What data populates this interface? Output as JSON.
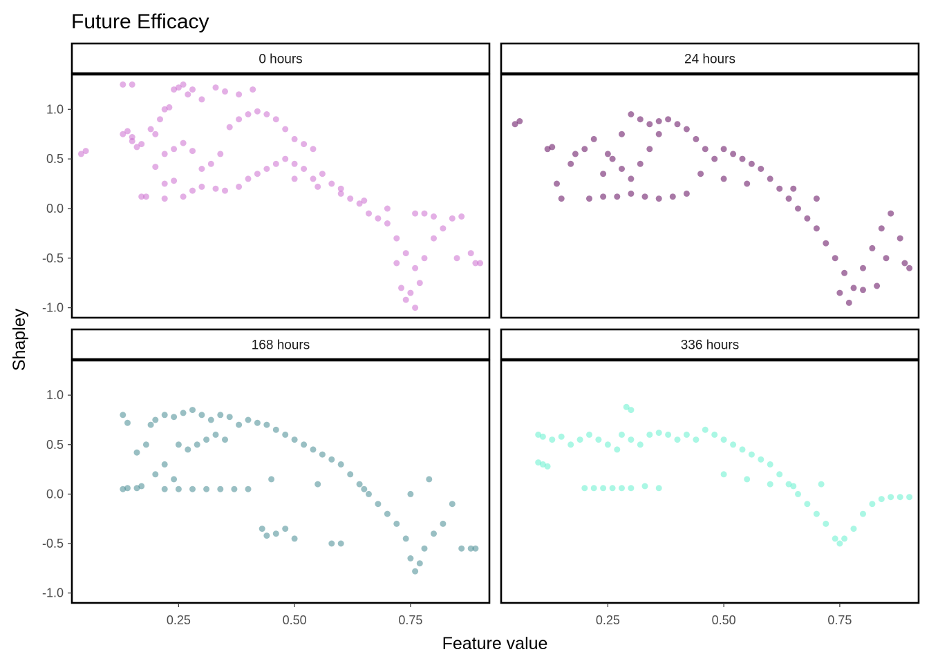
{
  "chart_data": {
    "type": "scatter",
    "title": "Future Efficacy",
    "xlabel": "Feature value",
    "ylabel": "Shapley",
    "xlim": [
      0.02,
      0.92
    ],
    "ylim": [
      -1.1,
      1.35
    ],
    "x_ticks": [
      {
        "value": 0.25,
        "label": "0.25"
      },
      {
        "value": 0.5,
        "label": "0.50"
      },
      {
        "value": 0.75,
        "label": "0.75"
      }
    ],
    "y_ticks": [
      {
        "value": 1.0,
        "label": "1.0"
      },
      {
        "value": 0.5,
        "label": "0.5"
      },
      {
        "value": 0.0,
        "label": "0.0"
      },
      {
        "value": -0.5,
        "label": "-0.5"
      },
      {
        "value": -1.0,
        "label": "-1.0"
      }
    ],
    "layout": "facet grid 2x2 (shared axes)",
    "panels": [
      {
        "label": "0 hours",
        "color": "#CC6ED0",
        "opacity": 0.55,
        "points": [
          [
            0.04,
            0.55
          ],
          [
            0.05,
            0.58
          ],
          [
            0.13,
            0.75
          ],
          [
            0.14,
            0.78
          ],
          [
            0.15,
            0.72
          ],
          [
            0.15,
            0.68
          ],
          [
            0.16,
            0.62
          ],
          [
            0.17,
            0.12
          ],
          [
            0.18,
            0.12
          ],
          [
            0.13,
            1.25
          ],
          [
            0.15,
            1.25
          ],
          [
            0.17,
            0.65
          ],
          [
            0.19,
            0.8
          ],
          [
            0.2,
            0.75
          ],
          [
            0.21,
            0.9
          ],
          [
            0.22,
            1.0
          ],
          [
            0.23,
            1.02
          ],
          [
            0.24,
            1.2
          ],
          [
            0.25,
            1.22
          ],
          [
            0.26,
            1.25
          ],
          [
            0.27,
            1.15
          ],
          [
            0.28,
            1.2
          ],
          [
            0.3,
            1.1
          ],
          [
            0.33,
            1.22
          ],
          [
            0.35,
            1.18
          ],
          [
            0.38,
            1.15
          ],
          [
            0.41,
            1.2
          ],
          [
            0.22,
            0.25
          ],
          [
            0.22,
            0.1
          ],
          [
            0.24,
            0.28
          ],
          [
            0.26,
            0.12
          ],
          [
            0.28,
            0.18
          ],
          [
            0.3,
            0.22
          ],
          [
            0.33,
            0.2
          ],
          [
            0.35,
            0.18
          ],
          [
            0.38,
            0.22
          ],
          [
            0.2,
            0.42
          ],
          [
            0.22,
            0.55
          ],
          [
            0.24,
            0.6
          ],
          [
            0.26,
            0.66
          ],
          [
            0.28,
            0.58
          ],
          [
            0.3,
            0.4
          ],
          [
            0.32,
            0.45
          ],
          [
            0.34,
            0.55
          ],
          [
            0.36,
            0.82
          ],
          [
            0.38,
            0.9
          ],
          [
            0.4,
            0.95
          ],
          [
            0.42,
            0.98
          ],
          [
            0.44,
            0.95
          ],
          [
            0.46,
            0.9
          ],
          [
            0.48,
            0.8
          ],
          [
            0.5,
            0.7
          ],
          [
            0.52,
            0.65
          ],
          [
            0.54,
            0.6
          ],
          [
            0.4,
            0.3
          ],
          [
            0.42,
            0.35
          ],
          [
            0.44,
            0.4
          ],
          [
            0.46,
            0.45
          ],
          [
            0.48,
            0.5
          ],
          [
            0.5,
            0.45
          ],
          [
            0.52,
            0.4
          ],
          [
            0.54,
            0.3
          ],
          [
            0.56,
            0.35
          ],
          [
            0.58,
            0.25
          ],
          [
            0.6,
            0.2
          ],
          [
            0.62,
            0.1
          ],
          [
            0.64,
            0.05
          ],
          [
            0.66,
            -0.05
          ],
          [
            0.68,
            -0.1
          ],
          [
            0.7,
            -0.15
          ],
          [
            0.72,
            -0.3
          ],
          [
            0.74,
            -0.45
          ],
          [
            0.76,
            -0.6
          ],
          [
            0.75,
            -0.85
          ],
          [
            0.77,
            -0.75
          ],
          [
            0.73,
            -0.8
          ],
          [
            0.74,
            -0.92
          ],
          [
            0.76,
            -1.0
          ],
          [
            0.72,
            -0.55
          ],
          [
            0.78,
            -0.5
          ],
          [
            0.8,
            -0.3
          ],
          [
            0.82,
            -0.2
          ],
          [
            0.84,
            -0.1
          ],
          [
            0.86,
            -0.08
          ],
          [
            0.88,
            -0.45
          ],
          [
            0.89,
            -0.55
          ],
          [
            0.9,
            -0.55
          ],
          [
            0.85,
            -0.5
          ],
          [
            0.8,
            -0.08
          ],
          [
            0.78,
            -0.05
          ],
          [
            0.76,
            -0.05
          ],
          [
            0.7,
            0.0
          ],
          [
            0.65,
            0.08
          ],
          [
            0.6,
            0.15
          ],
          [
            0.55,
            0.22
          ],
          [
            0.5,
            0.3
          ]
        ]
      },
      {
        "label": "24 hours",
        "color": "#6E1E6A",
        "opacity": 0.6,
        "points": [
          [
            0.05,
            0.85
          ],
          [
            0.06,
            0.88
          ],
          [
            0.12,
            0.6
          ],
          [
            0.13,
            0.62
          ],
          [
            0.14,
            0.25
          ],
          [
            0.15,
            0.1
          ],
          [
            0.17,
            0.45
          ],
          [
            0.18,
            0.55
          ],
          [
            0.2,
            0.6
          ],
          [
            0.22,
            0.7
          ],
          [
            0.24,
            0.35
          ],
          [
            0.26,
            0.5
          ],
          [
            0.28,
            0.75
          ],
          [
            0.3,
            0.95
          ],
          [
            0.32,
            0.9
          ],
          [
            0.34,
            0.85
          ],
          [
            0.36,
            0.88
          ],
          [
            0.38,
            0.9
          ],
          [
            0.21,
            0.1
          ],
          [
            0.24,
            0.12
          ],
          [
            0.27,
            0.12
          ],
          [
            0.3,
            0.15
          ],
          [
            0.33,
            0.12
          ],
          [
            0.36,
            0.1
          ],
          [
            0.39,
            0.12
          ],
          [
            0.42,
            0.15
          ],
          [
            0.25,
            0.55
          ],
          [
            0.28,
            0.4
          ],
          [
            0.3,
            0.3
          ],
          [
            0.32,
            0.45
          ],
          [
            0.34,
            0.6
          ],
          [
            0.36,
            0.75
          ],
          [
            0.4,
            0.85
          ],
          [
            0.42,
            0.8
          ],
          [
            0.44,
            0.7
          ],
          [
            0.46,
            0.6
          ],
          [
            0.48,
            0.5
          ],
          [
            0.5,
            0.6
          ],
          [
            0.52,
            0.55
          ],
          [
            0.54,
            0.5
          ],
          [
            0.56,
            0.45
          ],
          [
            0.58,
            0.4
          ],
          [
            0.6,
            0.3
          ],
          [
            0.62,
            0.2
          ],
          [
            0.64,
            0.1
          ],
          [
            0.66,
            0.0
          ],
          [
            0.68,
            -0.1
          ],
          [
            0.7,
            -0.2
          ],
          [
            0.72,
            -0.35
          ],
          [
            0.74,
            -0.5
          ],
          [
            0.76,
            -0.65
          ],
          [
            0.75,
            -0.85
          ],
          [
            0.77,
            -0.95
          ],
          [
            0.78,
            -0.8
          ],
          [
            0.8,
            -0.6
          ],
          [
            0.82,
            -0.4
          ],
          [
            0.84,
            -0.2
          ],
          [
            0.86,
            -0.05
          ],
          [
            0.88,
            -0.3
          ],
          [
            0.89,
            -0.55
          ],
          [
            0.9,
            -0.6
          ],
          [
            0.85,
            -0.5
          ],
          [
            0.8,
            -0.82
          ],
          [
            0.83,
            -0.78
          ],
          [
            0.7,
            0.1
          ],
          [
            0.65,
            0.2
          ],
          [
            0.55,
            0.25
          ],
          [
            0.5,
            0.3
          ],
          [
            0.45,
            0.35
          ]
        ]
      },
      {
        "label": "168 hours",
        "color": "#468A92",
        "opacity": 0.55,
        "points": [
          [
            0.13,
            0.8
          ],
          [
            0.14,
            0.72
          ],
          [
            0.13,
            0.05
          ],
          [
            0.14,
            0.06
          ],
          [
            0.16,
            0.06
          ],
          [
            0.17,
            0.08
          ],
          [
            0.16,
            0.42
          ],
          [
            0.18,
            0.5
          ],
          [
            0.19,
            0.7
          ],
          [
            0.2,
            0.75
          ],
          [
            0.22,
            0.8
          ],
          [
            0.24,
            0.78
          ],
          [
            0.26,
            0.82
          ],
          [
            0.28,
            0.85
          ],
          [
            0.3,
            0.8
          ],
          [
            0.32,
            0.75
          ],
          [
            0.34,
            0.8
          ],
          [
            0.36,
            0.78
          ],
          [
            0.2,
            0.2
          ],
          [
            0.22,
            0.3
          ],
          [
            0.24,
            0.15
          ],
          [
            0.22,
            0.05
          ],
          [
            0.25,
            0.05
          ],
          [
            0.28,
            0.05
          ],
          [
            0.31,
            0.05
          ],
          [
            0.34,
            0.05
          ],
          [
            0.37,
            0.05
          ],
          [
            0.4,
            0.05
          ],
          [
            0.25,
            0.5
          ],
          [
            0.27,
            0.45
          ],
          [
            0.29,
            0.5
          ],
          [
            0.31,
            0.55
          ],
          [
            0.33,
            0.6
          ],
          [
            0.35,
            0.55
          ],
          [
            0.38,
            0.7
          ],
          [
            0.4,
            0.75
          ],
          [
            0.42,
            0.72
          ],
          [
            0.44,
            0.7
          ],
          [
            0.46,
            0.65
          ],
          [
            0.48,
            0.6
          ],
          [
            0.5,
            0.55
          ],
          [
            0.52,
            0.5
          ],
          [
            0.54,
            0.45
          ],
          [
            0.56,
            0.4
          ],
          [
            0.58,
            0.35
          ],
          [
            0.6,
            0.3
          ],
          [
            0.62,
            0.2
          ],
          [
            0.64,
            0.1
          ],
          [
            0.66,
            0.0
          ],
          [
            0.68,
            -0.1
          ],
          [
            0.7,
            -0.2
          ],
          [
            0.72,
            -0.3
          ],
          [
            0.74,
            -0.45
          ],
          [
            0.75,
            -0.65
          ],
          [
            0.76,
            -0.78
          ],
          [
            0.77,
            -0.7
          ],
          [
            0.78,
            -0.55
          ],
          [
            0.8,
            -0.4
          ],
          [
            0.82,
            -0.3
          ],
          [
            0.84,
            -0.1
          ],
          [
            0.86,
            -0.55
          ],
          [
            0.88,
            -0.55
          ],
          [
            0.89,
            -0.55
          ],
          [
            0.43,
            -0.35
          ],
          [
            0.44,
            -0.42
          ],
          [
            0.46,
            -0.4
          ],
          [
            0.48,
            -0.35
          ],
          [
            0.5,
            -0.45
          ],
          [
            0.58,
            -0.5
          ],
          [
            0.6,
            -0.5
          ],
          [
            0.79,
            0.15
          ],
          [
            0.75,
            0.0
          ],
          [
            0.65,
            0.05
          ],
          [
            0.55,
            0.1
          ],
          [
            0.45,
            0.15
          ]
        ]
      },
      {
        "label": "336 hours",
        "color": "#72F2D2",
        "opacity": 0.6,
        "points": [
          [
            0.1,
            0.6
          ],
          [
            0.11,
            0.58
          ],
          [
            0.1,
            0.32
          ],
          [
            0.11,
            0.3
          ],
          [
            0.12,
            0.28
          ],
          [
            0.13,
            0.55
          ],
          [
            0.15,
            0.58
          ],
          [
            0.17,
            0.5
          ],
          [
            0.19,
            0.55
          ],
          [
            0.21,
            0.6
          ],
          [
            0.23,
            0.55
          ],
          [
            0.25,
            0.5
          ],
          [
            0.27,
            0.45
          ],
          [
            0.29,
            0.88
          ],
          [
            0.3,
            0.85
          ],
          [
            0.28,
            0.6
          ],
          [
            0.3,
            0.55
          ],
          [
            0.32,
            0.5
          ],
          [
            0.2,
            0.06
          ],
          [
            0.22,
            0.06
          ],
          [
            0.24,
            0.06
          ],
          [
            0.26,
            0.06
          ],
          [
            0.28,
            0.06
          ],
          [
            0.3,
            0.06
          ],
          [
            0.33,
            0.08
          ],
          [
            0.36,
            0.06
          ],
          [
            0.34,
            0.6
          ],
          [
            0.36,
            0.62
          ],
          [
            0.38,
            0.6
          ],
          [
            0.4,
            0.55
          ],
          [
            0.42,
            0.6
          ],
          [
            0.44,
            0.55
          ],
          [
            0.46,
            0.65
          ],
          [
            0.48,
            0.6
          ],
          [
            0.5,
            0.55
          ],
          [
            0.52,
            0.5
          ],
          [
            0.54,
            0.45
          ],
          [
            0.56,
            0.4
          ],
          [
            0.58,
            0.35
          ],
          [
            0.6,
            0.3
          ],
          [
            0.62,
            0.2
          ],
          [
            0.64,
            0.1
          ],
          [
            0.66,
            0.0
          ],
          [
            0.68,
            -0.1
          ],
          [
            0.7,
            -0.2
          ],
          [
            0.72,
            -0.3
          ],
          [
            0.74,
            -0.45
          ],
          [
            0.75,
            -0.5
          ],
          [
            0.76,
            -0.45
          ],
          [
            0.78,
            -0.35
          ],
          [
            0.8,
            -0.2
          ],
          [
            0.82,
            -0.1
          ],
          [
            0.84,
            -0.05
          ],
          [
            0.86,
            -0.03
          ],
          [
            0.88,
            -0.03
          ],
          [
            0.9,
            -0.03
          ],
          [
            0.71,
            0.1
          ],
          [
            0.65,
            0.08
          ],
          [
            0.6,
            0.1
          ],
          [
            0.55,
            0.15
          ],
          [
            0.5,
            0.2
          ]
        ]
      }
    ]
  }
}
